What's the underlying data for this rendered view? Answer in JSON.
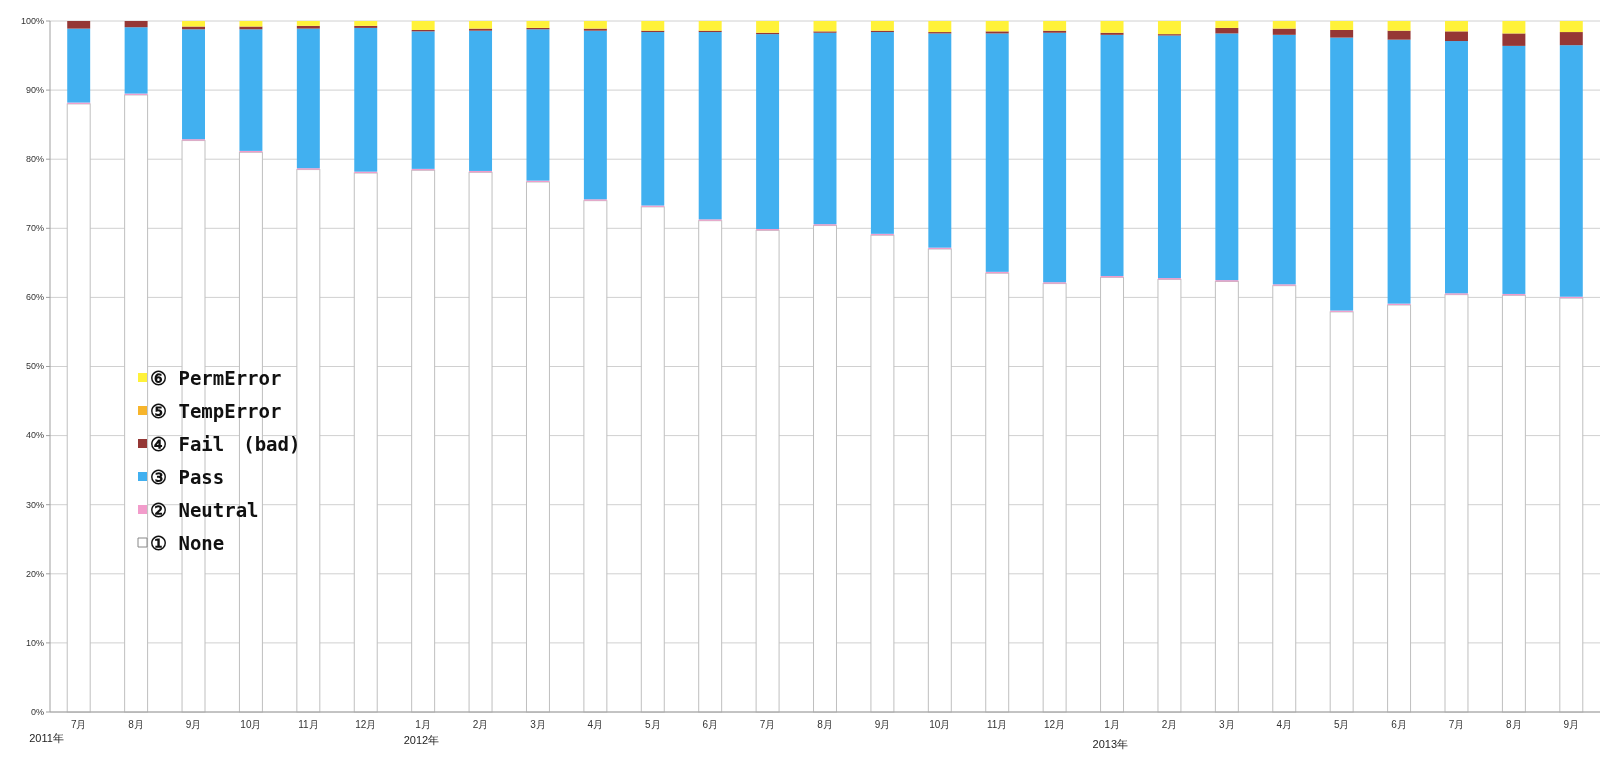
{
  "chart_data": {
    "type": "bar",
    "stacked": true,
    "categories": [
      "7月",
      "8月",
      "9月",
      "10月",
      "11月",
      "12月",
      "1月",
      "2月",
      "3月",
      "4月",
      "5月",
      "6月",
      "7月",
      "8月",
      "9月",
      "10月",
      "11月",
      "12月",
      "1月",
      "2月",
      "3月",
      "4月",
      "5月",
      "6月",
      "7月",
      "8月",
      "9月"
    ],
    "series": [
      {
        "name": "① None",
        "color": "#ffffff",
        "values": [
          88,
          89.3,
          82.7,
          81,
          78.5,
          78,
          78.4,
          78.1,
          76.7,
          74,
          73.1,
          71.1,
          69.7,
          70.4,
          69,
          67,
          63.5,
          62,
          62.9,
          62.6,
          62.3,
          61.7,
          57.9,
          58.9,
          60.4,
          60.3,
          59.9
        ]
      },
      {
        "name": "② Neutral",
        "color": "#f29ccb",
        "values": [
          0.2,
          0.2,
          0.2,
          0.2,
          0.2,
          0.2,
          0.2,
          0.2,
          0.2,
          0.2,
          0.2,
          0.2,
          0.2,
          0.2,
          0.2,
          0.2,
          0.2,
          0.2,
          0.2,
          0.2,
          0.2,
          0.2,
          0.2,
          0.2,
          0.2,
          0.2,
          0.2
        ]
      },
      {
        "name": "③ Pass",
        "color": "#41b0f0",
        "values": [
          10.7,
          9.6,
          15.9,
          17.6,
          20.2,
          20.8,
          19.9,
          20.3,
          21.9,
          24.4,
          25.1,
          27.1,
          28.2,
          27.7,
          29.2,
          31.0,
          34.5,
          36.1,
          34.9,
          35.1,
          35.7,
          36.1,
          39.5,
          38.2,
          36.5,
          35.9,
          36.4
        ]
      },
      {
        "name": "④ Fail　(bad)",
        "color": "#953735",
        "values": [
          1.1,
          0.9,
          0.4,
          0.4,
          0.4,
          0.3,
          0.2,
          0.3,
          0.2,
          0.3,
          0.2,
          0.2,
          0.2,
          0.2,
          0.2,
          0.2,
          0.3,
          0.3,
          0.3,
          0.2,
          0.8,
          0.9,
          1.1,
          1.3,
          1.4,
          1.8,
          1.9
        ]
      },
      {
        "name": "⑤ TempError",
        "color": "#f7b52c",
        "values": [
          0,
          0,
          0,
          0,
          0,
          0,
          0,
          0,
          0,
          0,
          0,
          0,
          0,
          0,
          0,
          0,
          0,
          0,
          0,
          0,
          0,
          0,
          0,
          0,
          0,
          0,
          0
        ]
      },
      {
        "name": "⑥ PermError",
        "color": "#fff23a",
        "values": [
          0,
          0,
          0.8,
          0.8,
          0.7,
          0.7,
          1.3,
          1.1,
          1.0,
          1.1,
          1.4,
          1.4,
          1.7,
          1.5,
          1.4,
          1.6,
          1.5,
          1.4,
          1.7,
          1.9,
          1.0,
          1.1,
          1.3,
          1.4,
          1.5,
          1.8,
          1.6
        ]
      }
    ],
    "ylim": [
      0,
      100
    ],
    "yticks": [
      {
        "value": 0,
        "label": "0%"
      },
      {
        "value": 10,
        "label": "10%"
      },
      {
        "value": 20,
        "label": "20%"
      },
      {
        "value": 30,
        "label": "30%"
      },
      {
        "value": 40,
        "label": "40%"
      },
      {
        "value": 50,
        "label": "50%"
      },
      {
        "value": 60,
        "label": "60%"
      },
      {
        "value": 70,
        "label": "70%"
      },
      {
        "value": 80,
        "label": "80%"
      },
      {
        "value": 90,
        "label": "90%"
      },
      {
        "value": 100,
        "label": "100%"
      }
    ],
    "grid": "y",
    "legend": "left",
    "annotations": [
      "2011年",
      "2012年",
      "2013年"
    ]
  }
}
